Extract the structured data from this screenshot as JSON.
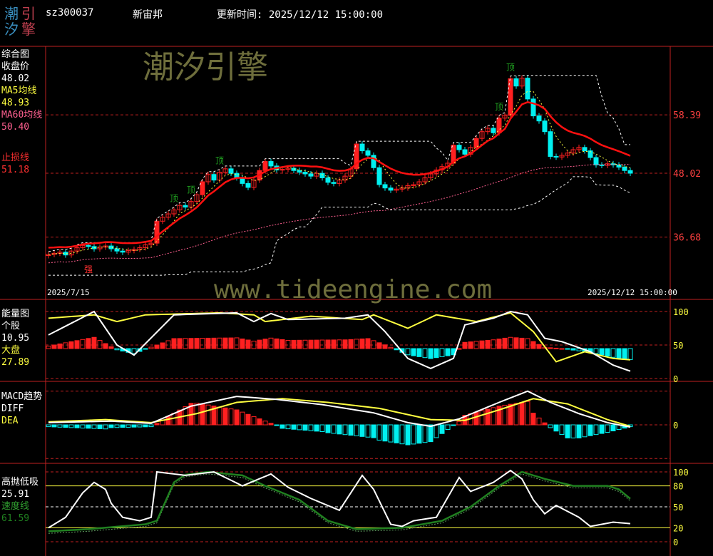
{
  "header": {
    "logo": [
      "潮",
      "汐",
      "引",
      "擎"
    ],
    "code": "sz300037",
    "name": "新宙邦",
    "update_label": "更新时间:",
    "update_time": "2025/12/12 15:00:00"
  },
  "watermark": {
    "cn": "潮汐引擎",
    "url": "www.tideengine.com"
  },
  "colors": {
    "up": "#ff2020",
    "down": "#00f0f0",
    "grid": "#c02020",
    "yellow": "#ffff40",
    "pink": "#ff6090",
    "green": "#208020"
  },
  "panels": {
    "main": {
      "title": "综合图",
      "close_label": "收盘价",
      "close": "48.02",
      "ma5_label": "MA5均线",
      "ma5": "48.93",
      "ma60_label": "MA60均线",
      "ma60": "50.40",
      "stop_label": "止损线",
      "stop": "51.18",
      "start_date": "2025/7/15",
      "end_date": "2025/12/12 15:00:00",
      "markers": [
        "顶",
        "顶",
        "顶",
        "顶",
        "顶",
        "强"
      ]
    },
    "energy": {
      "title": "能量图",
      "stock_label": "个股",
      "stock": "10.95",
      "market_label": "大盘",
      "market": "27.89"
    },
    "macd": {
      "title": "MACD趋势",
      "diff_label": "DIFF",
      "dea_label": "DEA"
    },
    "hl": {
      "title": "高抛低吸",
      "val_label": "25.91",
      "speed_label": "速度线",
      "speed": "61.59"
    }
  },
  "chart_data": [
    {
      "type": "candlestick",
      "title": "综合图",
      "y_ticks": [
        58.39,
        48.02,
        36.68
      ],
      "x_range": [
        "2025/7/15",
        "2025/12/12"
      ],
      "close": [
        33.6,
        33.8,
        34.0,
        33.5,
        34.2,
        34.8,
        35.2,
        35.0,
        34.6,
        34.9,
        35.1,
        34.6,
        34.2,
        34.0,
        34.3,
        34.5,
        34.8,
        35.3,
        35.6,
        39.5,
        40.2,
        40.8,
        41.5,
        42.3,
        42.0,
        43.0,
        44.2,
        46.5,
        47.8,
        46.8,
        48.2,
        48.8,
        48.0,
        47.2,
        46.2,
        45.5,
        46.8,
        48.5,
        50.1,
        49.3,
        48.6,
        48.7,
        48.9,
        48.5,
        48.2,
        47.9,
        47.5,
        48.0,
        47.2,
        46.4,
        46.2,
        46.8,
        47.5,
        48.8,
        53.2,
        52.0,
        51.2,
        49.0,
        46.0,
        45.4,
        45.0,
        45.2,
        45.4,
        45.8,
        46.0,
        46.5,
        47.2,
        47.9,
        48.6,
        49.2,
        49.8,
        53.0,
        52.2,
        51.4,
        52.6,
        54.2,
        55.4,
        56.0,
        55.2,
        57.8,
        58.3,
        64.8,
        63.5,
        64.9,
        61.2,
        58.2,
        57.3,
        55.4,
        51.0,
        50.9,
        51.2,
        51.6,
        52.2,
        52.6,
        52.0,
        50.8,
        49.5,
        49.4,
        49.7,
        49.5,
        49.1,
        48.5,
        48.02
      ]
    },
    {
      "type": "line",
      "title": "能量图",
      "y_ticks": [
        100,
        50,
        0
      ],
      "ylim": [
        0,
        100
      ],
      "series": [
        {
          "name": "个股",
          "points": [
            [
              0,
              65
            ],
            [
              8,
              100
            ],
            [
              12,
              50
            ],
            [
              15,
              35
            ],
            [
              22,
              95
            ],
            [
              33,
              98
            ],
            [
              36,
              85
            ],
            [
              39,
              97
            ],
            [
              42,
              88
            ],
            [
              52,
              90
            ],
            [
              56,
              95
            ],
            [
              59,
              70
            ],
            [
              63,
              30
            ],
            [
              67,
              15
            ],
            [
              71,
              30
            ],
            [
              73,
              80
            ],
            [
              78,
              90
            ],
            [
              81,
              100
            ],
            [
              84,
              95
            ],
            [
              87,
              60
            ],
            [
              90,
              55
            ],
            [
              95,
              40
            ],
            [
              99,
              20
            ],
            [
              102,
              10.95
            ]
          ]
        },
        {
          "name": "大盘",
          "points": [
            [
              0,
              90
            ],
            [
              8,
              95
            ],
            [
              12,
              85
            ],
            [
              17,
              95
            ],
            [
              30,
              98
            ],
            [
              36,
              95
            ],
            [
              38,
              85
            ],
            [
              46,
              93
            ],
            [
              55,
              88
            ],
            [
              57,
              95
            ],
            [
              63,
              75
            ],
            [
              68,
              95
            ],
            [
              75,
              85
            ],
            [
              81,
              98
            ],
            [
              85,
              70
            ],
            [
              89,
              25
            ],
            [
              94,
              40
            ],
            [
              99,
              30
            ],
            [
              102,
              27.89
            ]
          ]
        }
      ]
    },
    {
      "type": "line",
      "title": "MACD趋势",
      "y_ticks": [
        0
      ],
      "series": [
        {
          "name": "DIFF",
          "points": [
            [
              0,
              0.3
            ],
            [
              11,
              0.5
            ],
            [
              18,
              0.2
            ],
            [
              25,
              2.5
            ],
            [
              33,
              3.8
            ],
            [
              40,
              3.4
            ],
            [
              48,
              2.7
            ],
            [
              57,
              1.6
            ],
            [
              63,
              0.3
            ],
            [
              67,
              -0.2
            ],
            [
              72,
              0.8
            ],
            [
              79,
              3
            ],
            [
              84,
              4.5
            ],
            [
              88,
              3
            ],
            [
              93,
              1.5
            ],
            [
              98,
              0.3
            ],
            [
              102,
              -0.3
            ]
          ]
        },
        {
          "name": "DEA",
          "points": [
            [
              0,
              0.4
            ],
            [
              10,
              0.7
            ],
            [
              18,
              0.3
            ],
            [
              26,
              1.5
            ],
            [
              33,
              3
            ],
            [
              41,
              3.5
            ],
            [
              49,
              3
            ],
            [
              58,
              2.2
            ],
            [
              67,
              0.7
            ],
            [
              73,
              0.6
            ],
            [
              79,
              2
            ],
            [
              85,
              3.5
            ],
            [
              91,
              2.8
            ],
            [
              98,
              0.7
            ],
            [
              102,
              -0.2
            ]
          ]
        }
      ]
    },
    {
      "type": "line",
      "title": "高抛低吸",
      "y_ticks": [
        100,
        80,
        50,
        20,
        0
      ],
      "ylim": [
        0,
        100
      ],
      "series": [
        {
          "name": "高抛低吸",
          "points": [
            [
              0,
              20
            ],
            [
              3,
              35
            ],
            [
              6,
              70
            ],
            [
              8,
              85
            ],
            [
              10,
              75
            ],
            [
              11,
              55
            ],
            [
              13,
              35
            ],
            [
              16,
              30
            ],
            [
              18,
              35
            ],
            [
              19,
              100
            ],
            [
              22,
              97
            ],
            [
              24,
              95
            ],
            [
              29,
              100
            ],
            [
              34,
              80
            ],
            [
              39,
              97
            ],
            [
              42,
              78
            ],
            [
              46,
              62
            ],
            [
              51,
              45
            ],
            [
              53,
              70
            ],
            [
              55,
              95
            ],
            [
              57,
              75
            ],
            [
              60,
              25
            ],
            [
              62,
              22
            ],
            [
              64,
              30
            ],
            [
              68,
              35
            ],
            [
              72,
              92
            ],
            [
              74,
              72
            ],
            [
              78,
              85
            ],
            [
              81,
              102
            ],
            [
              83,
              90
            ],
            [
              85,
              60
            ],
            [
              87,
              40
            ],
            [
              89,
              52
            ],
            [
              93,
              35
            ],
            [
              95,
              22
            ],
            [
              99,
              28
            ],
            [
              102,
              25.91
            ]
          ]
        },
        {
          "name": "速度线",
          "points": [
            [
              0,
              15
            ],
            [
              7,
              18
            ],
            [
              17,
              25
            ],
            [
              19,
              30
            ],
            [
              22,
              85
            ],
            [
              24,
              96
            ],
            [
              28,
              100
            ],
            [
              34,
              95
            ],
            [
              38,
              80
            ],
            [
              44,
              60
            ],
            [
              49,
              30
            ],
            [
              54,
              18
            ],
            [
              62,
              20
            ],
            [
              69,
              30
            ],
            [
              74,
              50
            ],
            [
              79,
              80
            ],
            [
              83,
              100
            ],
            [
              87,
              90
            ],
            [
              92,
              80
            ],
            [
              98,
              80
            ],
            [
              100,
              75
            ],
            [
              102,
              61.59
            ]
          ]
        }
      ]
    }
  ]
}
